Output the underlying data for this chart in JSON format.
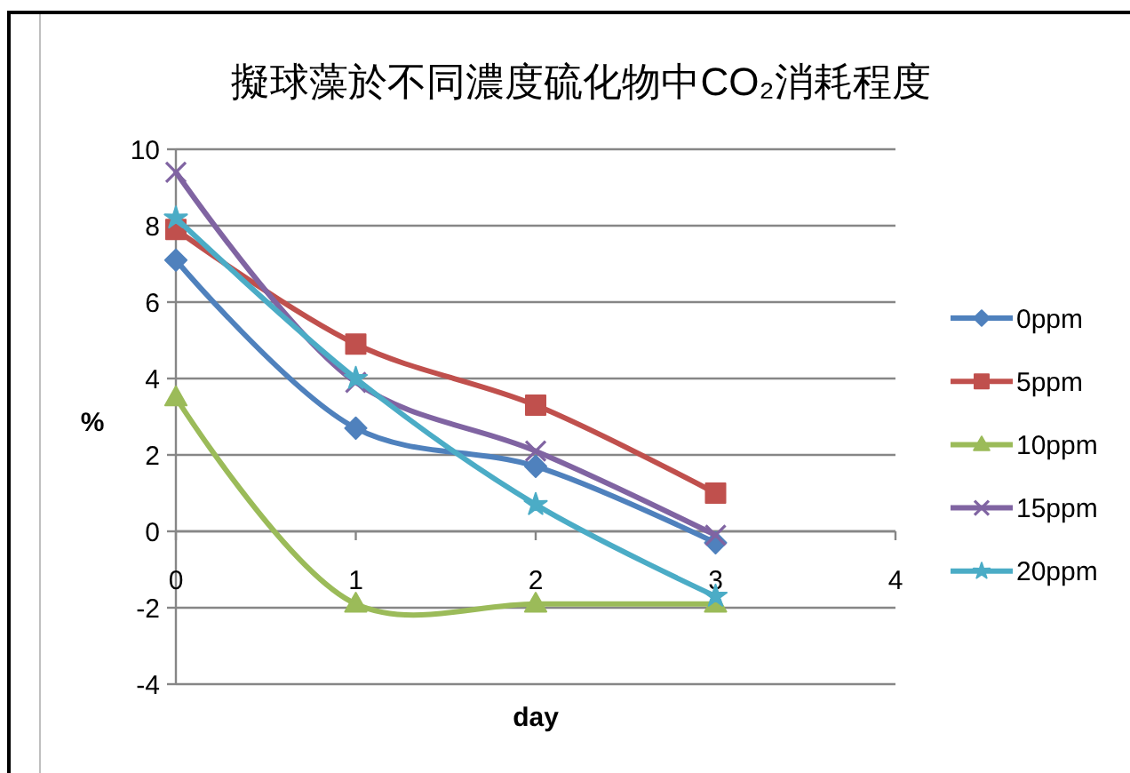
{
  "chart_data": {
    "type": "line",
    "title": "擬球藻於不同濃度硫化物中CO₂消耗程度",
    "xlabel": "day",
    "ylabel": "%",
    "x": [
      0,
      1,
      2,
      3
    ],
    "xlim": [
      0,
      4
    ],
    "xticks": [
      0,
      1,
      2,
      3,
      4
    ],
    "ylim": [
      -4,
      10
    ],
    "yticks": [
      -4,
      -2,
      0,
      2,
      4,
      6,
      8,
      10
    ],
    "grid": "y",
    "legend": "right",
    "line_style": "solid",
    "series": [
      {
        "name": "0ppm",
        "color": "#4f81bd",
        "marker": "diamond",
        "values": [
          7.1,
          2.7,
          1.7,
          -0.3
        ]
      },
      {
        "name": "5ppm",
        "color": "#c0504d",
        "marker": "square",
        "values": [
          7.9,
          4.9,
          3.3,
          1.0
        ]
      },
      {
        "name": "10ppm",
        "color": "#9bbb59",
        "marker": "triangle",
        "values": [
          3.5,
          -1.9,
          -1.9,
          -1.9
        ]
      },
      {
        "name": "15ppm",
        "color": "#8064a2",
        "marker": "cross",
        "values": [
          9.4,
          3.9,
          2.1,
          -0.1
        ]
      },
      {
        "name": "20ppm",
        "color": "#4bacc6",
        "marker": "star",
        "values": [
          8.2,
          4.0,
          0.7,
          -1.7
        ]
      }
    ]
  }
}
